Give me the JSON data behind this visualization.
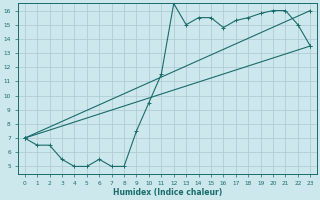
{
  "xlabel": "Humidex (Indice chaleur)",
  "bg_color": "#cde8ec",
  "grid_color": "#aecdd3",
  "line_color": "#1a6b6b",
  "xlim": [
    -0.5,
    23.5
  ],
  "ylim": [
    4.5,
    16.5
  ],
  "xticks": [
    0,
    1,
    2,
    3,
    4,
    5,
    6,
    7,
    8,
    9,
    10,
    11,
    12,
    13,
    14,
    15,
    16,
    17,
    18,
    19,
    20,
    21,
    22,
    23
  ],
  "yticks": [
    5,
    6,
    7,
    8,
    9,
    10,
    11,
    12,
    13,
    14,
    15,
    16
  ],
  "curve1_x": [
    0,
    1,
    2,
    3,
    4,
    5,
    6,
    7,
    8,
    9,
    10,
    11,
    12,
    13,
    14,
    15,
    16,
    17,
    18,
    19,
    20,
    21,
    22,
    23
  ],
  "curve1_y": [
    7.0,
    6.5,
    6.5,
    5.5,
    5.0,
    5.0,
    5.5,
    5.0,
    5.0,
    7.5,
    9.5,
    11.5,
    16.5,
    15.0,
    15.5,
    15.5,
    14.8,
    15.3,
    15.5,
    15.8,
    16.0,
    16.0,
    15.0,
    13.5
  ],
  "curve2_x": [
    0,
    23
  ],
  "curve2_y": [
    7.0,
    13.5
  ],
  "curve3_x": [
    0,
    23
  ],
  "curve3_y": [
    7.0,
    16.0
  ]
}
